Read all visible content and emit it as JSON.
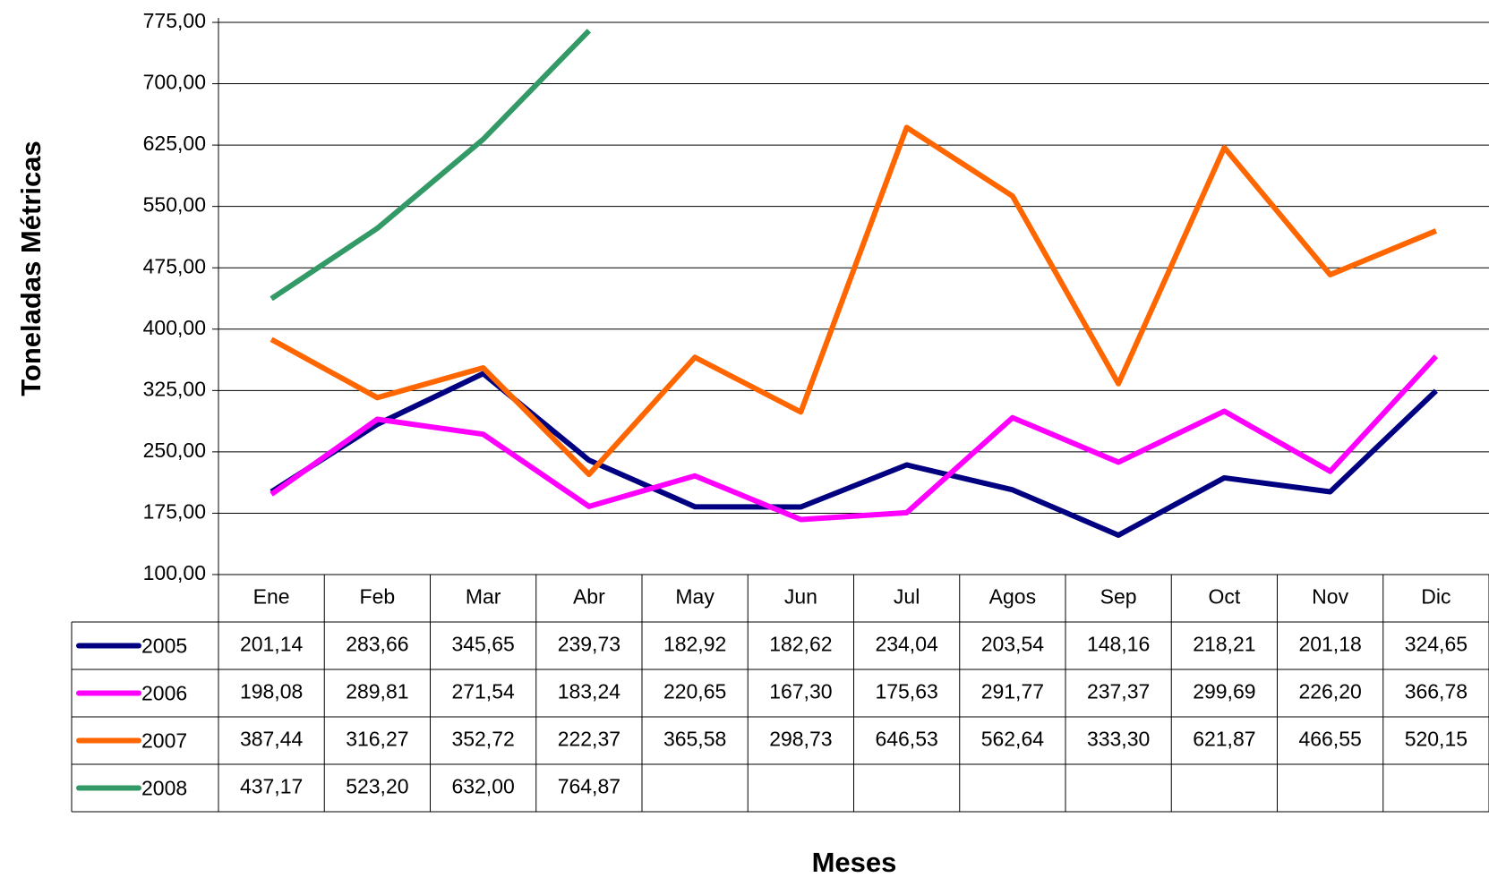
{
  "chart_data": {
    "type": "line",
    "y_label": "Toneladas Métricas",
    "x_label": "Meses",
    "categories": [
      "Ene",
      "Feb",
      "Mar",
      "Abr",
      "May",
      "Jun",
      "Jul",
      "Agos",
      "Sep",
      "Oct",
      "Nov",
      "Dic"
    ],
    "series": [
      {
        "name": "2005",
        "color": "#000080",
        "values": [
          201.14,
          283.66,
          345.65,
          239.73,
          182.92,
          182.62,
          234.04,
          203.54,
          148.16,
          218.21,
          201.18,
          324.65
        ],
        "value_labels": [
          "201,14",
          "283,66",
          "345,65",
          "239,73",
          "182,92",
          "182,62",
          "234,04",
          "203,54",
          "148,16",
          "218,21",
          "201,18",
          "324,65"
        ]
      },
      {
        "name": "2006",
        "color": "#ff00ff",
        "values": [
          198.08,
          289.81,
          271.54,
          183.24,
          220.65,
          167.3,
          175.63,
          291.77,
          237.37,
          299.69,
          226.2,
          366.78
        ],
        "value_labels": [
          "198,08",
          "289,81",
          "271,54",
          "183,24",
          "220,65",
          "167,30",
          "175,63",
          "291,77",
          "237,37",
          "299,69",
          "226,20",
          "366,78"
        ]
      },
      {
        "name": "2007",
        "color": "#ff6600",
        "values": [
          387.44,
          316.27,
          352.72,
          222.37,
          365.58,
          298.73,
          646.53,
          562.64,
          333.3,
          621.87,
          466.55,
          520.15
        ],
        "value_labels": [
          "387,44",
          "316,27",
          "352,72",
          "222,37",
          "365,58",
          "298,73",
          "646,53",
          "562,64",
          "333,30",
          "621,87",
          "466,55",
          "520,15"
        ]
      },
      {
        "name": "2008",
        "color": "#339966",
        "values": [
          437.17,
          523.2,
          632.0,
          764.87,
          null,
          null,
          null,
          null,
          null,
          null,
          null,
          null
        ],
        "value_labels": [
          "437,17",
          "523,20",
          "632,00",
          "764,87",
          null,
          null,
          null,
          null,
          null,
          null,
          null,
          null
        ]
      }
    ],
    "ylim": [
      100,
      775
    ],
    "yticks": [
      {
        "value": 100,
        "label": "100,00"
      },
      {
        "value": 175,
        "label": "175,00"
      },
      {
        "value": 250,
        "label": "250,00"
      },
      {
        "value": 325,
        "label": "325,00"
      },
      {
        "value": 400,
        "label": "400,00"
      },
      {
        "value": 475,
        "label": "475,00"
      },
      {
        "value": 550,
        "label": "550,00"
      },
      {
        "value": 625,
        "label": "625,00"
      },
      {
        "value": 700,
        "label": "700,00"
      },
      {
        "value": 775,
        "label": "775,00"
      }
    ],
    "grid": true,
    "data_table": true
  }
}
